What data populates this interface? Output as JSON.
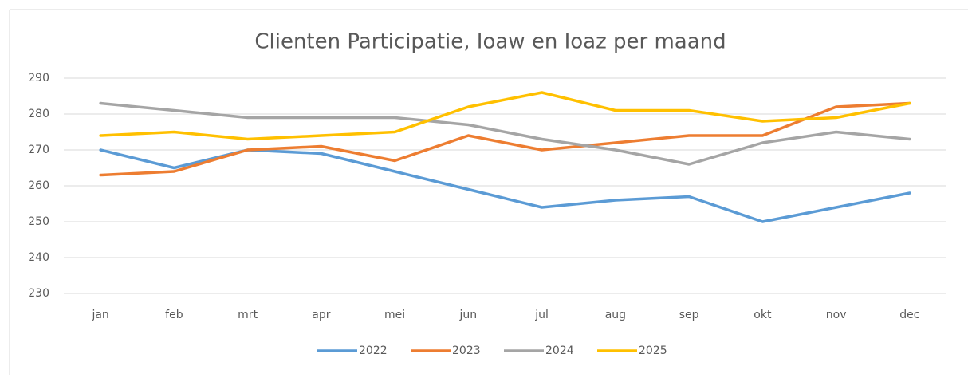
{
  "chart_data": {
    "type": "line",
    "title": "Clienten Participatie, Ioaw en Ioaz per maand",
    "categories": [
      "jan",
      "feb",
      "mrt",
      "apr",
      "mei",
      "jun",
      "jul",
      "aug",
      "sep",
      "okt",
      "nov",
      "dec"
    ],
    "series": [
      {
        "name": "2022",
        "color": "#5b9bd5",
        "values": [
          270,
          265,
          270,
          269,
          264,
          259,
          254,
          256,
          257,
          250,
          254,
          258
        ]
      },
      {
        "name": "2023",
        "color": "#ed7d31",
        "values": [
          263,
          264,
          270,
          271,
          267,
          274,
          270,
          272,
          274,
          274,
          282,
          283
        ]
      },
      {
        "name": "2024",
        "color": "#a5a5a5",
        "values": [
          283,
          281,
          279,
          279,
          279,
          277,
          273,
          270,
          266,
          272,
          275,
          273
        ]
      },
      {
        "name": "2025",
        "color": "#ffc000",
        "values": [
          274,
          275,
          273,
          274,
          275,
          282,
          286,
          281,
          281,
          278,
          279,
          283
        ]
      }
    ],
    "ylim": [
      230,
      290
    ],
    "yticks": [
      230,
      240,
      250,
      260,
      270,
      280,
      290
    ],
    "grid": true,
    "legend": "bottom"
  }
}
